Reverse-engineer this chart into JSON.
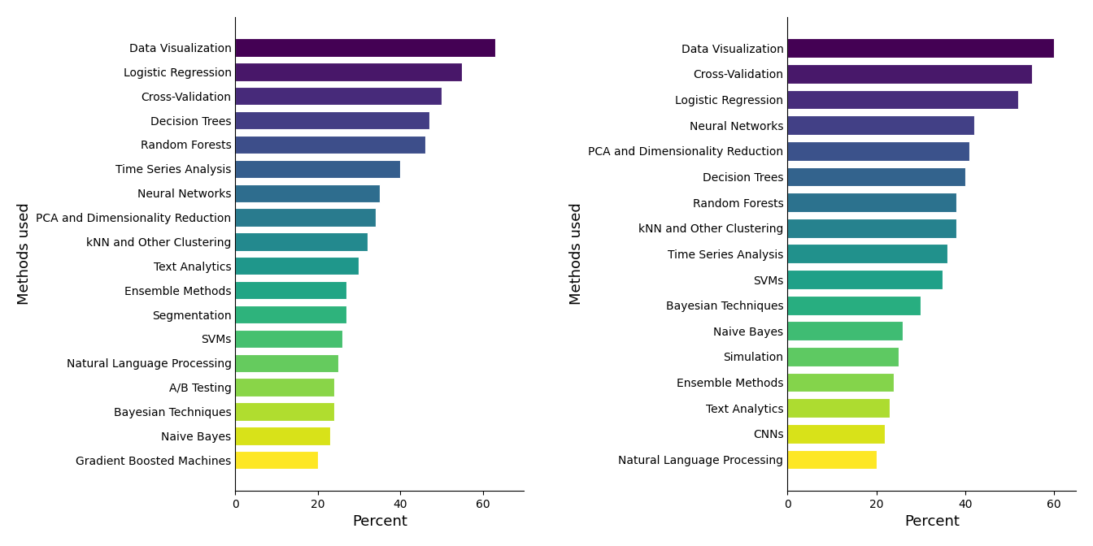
{
  "left": {
    "categories": [
      "Gradient Boosted Machines",
      "Naive Bayes",
      "Bayesian Techniques",
      "A/B Testing",
      "Natural Language Processing",
      "SVMs",
      "Segmentation",
      "Ensemble Methods",
      "Text Analytics",
      "kNN and Other Clustering",
      "PCA and Dimensionality Reduction",
      "Neural Networks",
      "Time Series Analysis",
      "Random Forests",
      "Decision Trees",
      "Cross-Validation",
      "Logistic Regression",
      "Data Visualization"
    ],
    "values": [
      20,
      23,
      24,
      24,
      25,
      26,
      27,
      27,
      30,
      32,
      34,
      35,
      40,
      46,
      47,
      50,
      55,
      63
    ],
    "xlabel": "Percent",
    "ylabel": "Methods used",
    "xlim": [
      0,
      70
    ],
    "xticks": [
      0,
      20,
      40,
      60
    ]
  },
  "right": {
    "categories": [
      "Natural Language Processing",
      "CNNs",
      "Text Analytics",
      "Ensemble Methods",
      "Simulation",
      "Naive Bayes",
      "Bayesian Techniques",
      "SVMs",
      "Time Series Analysis",
      "kNN and Other Clustering",
      "Random Forests",
      "Decision Trees",
      "PCA and Dimensionality Reduction",
      "Neural Networks",
      "Logistic Regression",
      "Cross-Validation",
      "Data Visualization"
    ],
    "values": [
      20,
      22,
      23,
      24,
      25,
      26,
      30,
      35,
      36,
      38,
      38,
      40,
      41,
      42,
      52,
      55,
      60
    ],
    "xlabel": "Percent",
    "ylabel": "Methods used",
    "xlim": [
      0,
      65
    ],
    "xticks": [
      0,
      20,
      40,
      60
    ]
  },
  "cmap": "viridis",
  "background_color": "#ffffff",
  "bar_height": 0.75,
  "label_fontsize": 10,
  "axis_label_fontsize": 13,
  "tick_fontsize": 10
}
